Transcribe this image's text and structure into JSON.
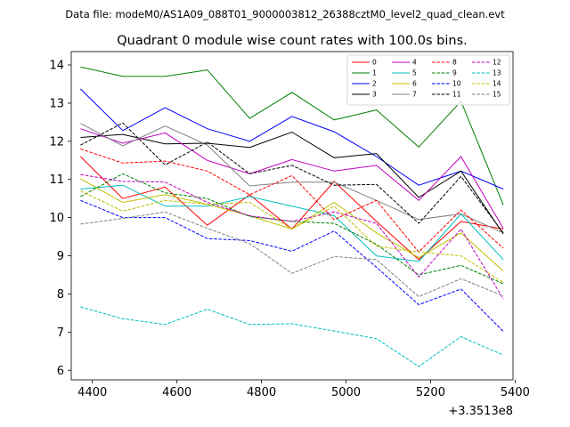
{
  "header": {
    "data_file": "Data file: modeM0/AS1A09_088T01_9000003812_26388cztM0_level2_quad_clean.evt"
  },
  "chart_data": {
    "type": "line",
    "title": "Quadrant 0 module wise count rates with 100.0s bins.",
    "xlabel": "",
    "ylabel": "",
    "x_offset_label": "+3.3513e8",
    "xlim": [
      4350,
      5395
    ],
    "ylim": [
      5.75,
      14.35
    ],
    "x_ticks": [
      4400,
      4600,
      4800,
      5000,
      5200,
      5400
    ],
    "x_tick_labels": [
      "4400",
      "4600",
      "4800",
      "5000",
      "5200",
      "5400"
    ],
    "y_ticks": [
      6,
      7,
      8,
      9,
      10,
      11,
      12,
      13,
      14
    ],
    "y_tick_labels": [
      "6",
      "7",
      "8",
      "9",
      "10",
      "11",
      "12",
      "13",
      "14"
    ],
    "legend_position": "top-right",
    "x": [
      4372,
      4472,
      4572,
      4672,
      4772,
      4872,
      4972,
      5072,
      5172,
      5272,
      5372
    ],
    "series": [
      {
        "name": "0",
        "color": "#ff0000",
        "style": "solid",
        "values": [
          11.6,
          10.5,
          10.8,
          9.8,
          10.6,
          9.7,
          10.95,
          9.9,
          8.9,
          9.9,
          9.7
        ]
      },
      {
        "name": "1",
        "color": "#008000",
        "style": "solid",
        "values": [
          13.95,
          13.7,
          13.7,
          13.87,
          12.6,
          13.28,
          12.56,
          12.82,
          11.85,
          13.05,
          10.33
        ]
      },
      {
        "name": "2",
        "color": "#0000ff",
        "style": "solid",
        "values": [
          13.37,
          12.28,
          12.88,
          12.33,
          12.0,
          12.65,
          12.25,
          11.6,
          10.85,
          11.22,
          10.75
        ]
      },
      {
        "name": "3",
        "color": "#000000",
        "style": "solid",
        "values": [
          12.1,
          12.18,
          11.93,
          11.95,
          11.84,
          12.24,
          11.57,
          11.68,
          10.53,
          11.22,
          9.57
        ]
      },
      {
        "name": "4",
        "color": "#bf00bf",
        "style": "solid",
        "values": [
          12.33,
          11.95,
          12.22,
          11.5,
          11.15,
          11.52,
          11.22,
          11.37,
          10.45,
          11.6,
          9.72
        ]
      },
      {
        "name": "5",
        "color": "#00bfbf",
        "style": "solid",
        "values": [
          10.75,
          10.85,
          10.3,
          10.3,
          10.55,
          10.3,
          10.05,
          9.0,
          8.85,
          10.1,
          8.9
        ]
      },
      {
        "name": "6",
        "color": "#bfbf00",
        "style": "solid",
        "values": [
          11.02,
          10.4,
          10.6,
          10.35,
          10.05,
          9.7,
          10.4,
          9.6,
          8.95,
          9.6,
          8.6
        ]
      },
      {
        "name": "7",
        "color": "#808080",
        "style": "solid",
        "values": [
          12.47,
          11.88,
          12.4,
          11.9,
          10.83,
          10.93,
          10.93,
          10.45,
          9.95,
          10.1,
          9.6
        ]
      },
      {
        "name": "8",
        "color": "#ff0000",
        "style": "dashed",
        "values": [
          11.8,
          11.43,
          11.48,
          11.22,
          10.6,
          11.1,
          9.95,
          10.45,
          9.1,
          10.2,
          9.2
        ]
      },
      {
        "name": "9",
        "color": "#008000",
        "style": "dashed",
        "values": [
          10.55,
          11.15,
          10.65,
          10.5,
          10.03,
          9.9,
          9.85,
          9.3,
          8.5,
          8.75,
          8.27
        ]
      },
      {
        "name": "10",
        "color": "#0000ff",
        "style": "dashed",
        "values": [
          10.45,
          10.0,
          10.0,
          9.45,
          9.4,
          9.12,
          9.65,
          8.7,
          7.72,
          8.13,
          7.02
        ]
      },
      {
        "name": "11",
        "color": "#000000",
        "style": "dashed",
        "values": [
          11.9,
          12.48,
          11.38,
          11.98,
          11.15,
          11.37,
          10.85,
          10.87,
          9.85,
          11.08,
          9.6
        ]
      },
      {
        "name": "12",
        "color": "#bf00bf",
        "style": "dashed",
        "values": [
          11.13,
          10.95,
          10.93,
          10.4,
          10.05,
          9.9,
          10.15,
          9.85,
          8.45,
          9.7,
          7.87
        ]
      },
      {
        "name": "13",
        "color": "#00bfbf",
        "style": "dashed",
        "values": [
          7.66,
          7.35,
          7.2,
          7.6,
          7.2,
          7.22,
          7.03,
          6.83,
          6.1,
          6.88,
          6.4
        ]
      },
      {
        "name": "14",
        "color": "#bfbf00",
        "style": "dashed",
        "values": [
          10.7,
          10.17,
          10.45,
          10.35,
          10.4,
          9.7,
          10.3,
          9.25,
          9.1,
          9.0,
          8.3
        ]
      },
      {
        "name": "15",
        "color": "#808080",
        "style": "dashed",
        "values": [
          9.83,
          9.98,
          10.15,
          9.72,
          9.32,
          8.54,
          8.98,
          8.9,
          7.93,
          8.4,
          7.95
        ]
      }
    ]
  }
}
